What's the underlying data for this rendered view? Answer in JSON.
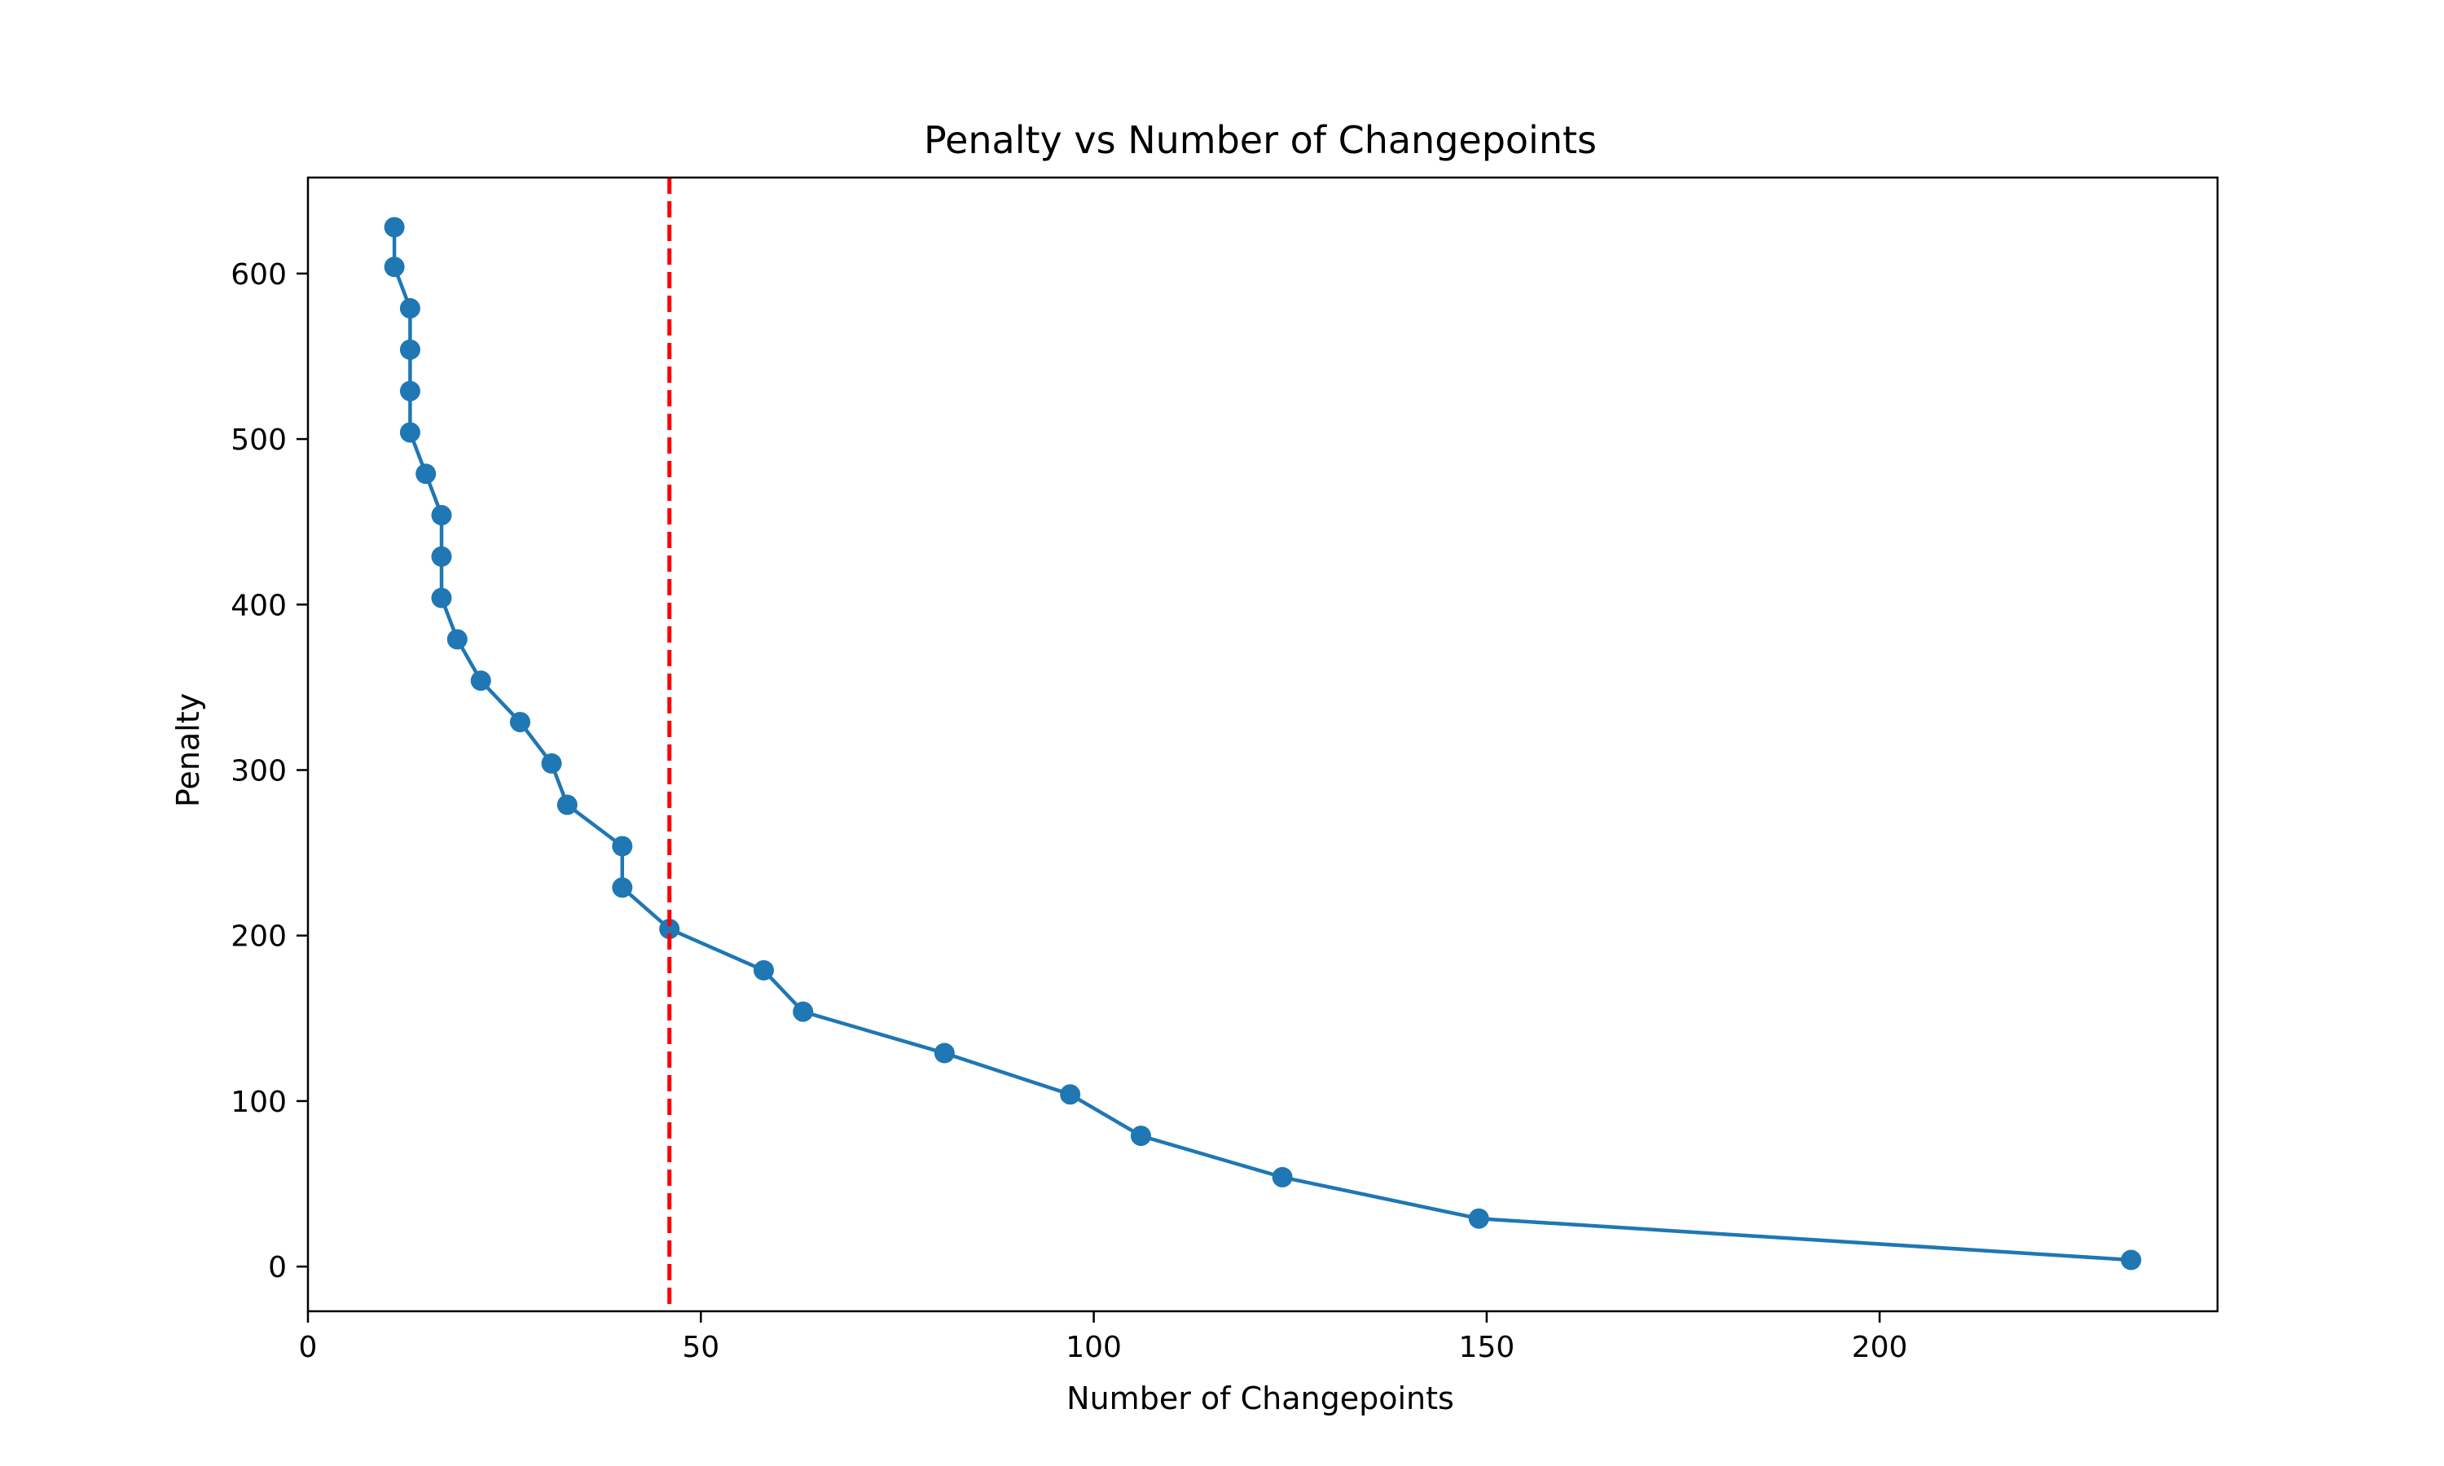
{
  "chart_data": {
    "type": "line",
    "title": "Penalty vs Number of Changepoints",
    "xlabel": "Number of Changepoints",
    "ylabel": "Penalty",
    "xlim": [
      0,
      243
    ],
    "ylim": [
      -27,
      658
    ],
    "xticks": [
      0,
      50,
      100,
      150,
      200
    ],
    "yticks": [
      0,
      100,
      200,
      300,
      400,
      500,
      600
    ],
    "grid": false,
    "series": [
      {
        "color": "#1f77b4",
        "marker": "circle",
        "x": [
          232,
          149,
          124,
          106,
          97,
          81,
          63,
          58,
          46,
          40,
          40,
          33,
          31,
          27,
          22,
          19,
          17,
          17,
          17,
          15,
          13,
          13,
          13,
          13,
          11,
          11
        ],
        "y": [
          4,
          29,
          54,
          79,
          104,
          129,
          154,
          179,
          204,
          229,
          254,
          279,
          304,
          329,
          354,
          379,
          404,
          429,
          454,
          479,
          504,
          529,
          554,
          579,
          604,
          628
        ]
      }
    ],
    "reference_lines": [
      {
        "orientation": "vertical",
        "x": 46,
        "color": "#ff0000",
        "style": "dashed"
      }
    ]
  }
}
